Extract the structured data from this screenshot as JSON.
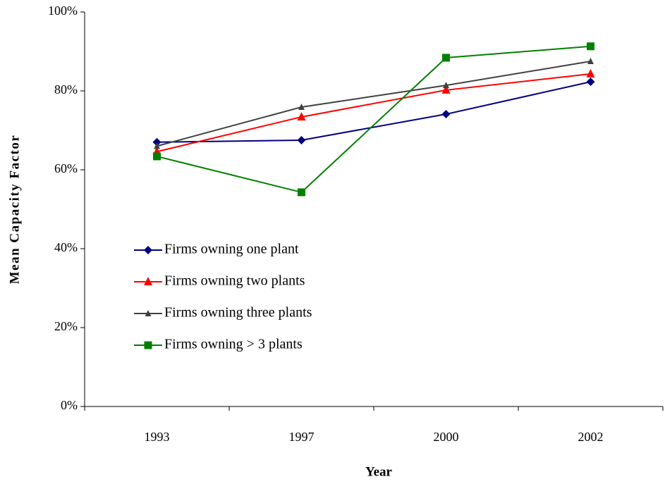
{
  "chart_data": {
    "type": "line",
    "x_label": "Year",
    "y_label": "Mean Capacity Factor",
    "categories": [
      "1993",
      "1997",
      "2000",
      "2002"
    ],
    "series": [
      {
        "name": "Firms owning one plant",
        "color": "#000080",
        "marker": "diamond",
        "values": [
          67,
          67.5,
          74.1,
          82.3
        ]
      },
      {
        "name": "Firms owning two plants",
        "color": "#ff0000",
        "marker": "triangle",
        "values": [
          64.6,
          73.4,
          80.2,
          84.3
        ]
      },
      {
        "name": "Firms owning three plants",
        "color": "#404040",
        "marker": "small-triangle",
        "values": [
          66,
          75.9,
          81.4,
          87.5
        ]
      },
      {
        "name": "Firms owning > 3 plants",
        "color": "#008000",
        "marker": "square",
        "values": [
          63.4,
          54.3,
          88.4,
          91.3
        ]
      }
    ],
    "ylim": [
      0,
      100
    ],
    "yticks": [
      {
        "value": 0,
        "label": "0%"
      },
      {
        "value": 20,
        "label": "20%"
      },
      {
        "value": 40,
        "label": "40%"
      },
      {
        "value": 60,
        "label": "60%"
      },
      {
        "value": 80,
        "label": "80%"
      },
      {
        "value": 100,
        "label": "100%"
      }
    ],
    "grid": false
  }
}
